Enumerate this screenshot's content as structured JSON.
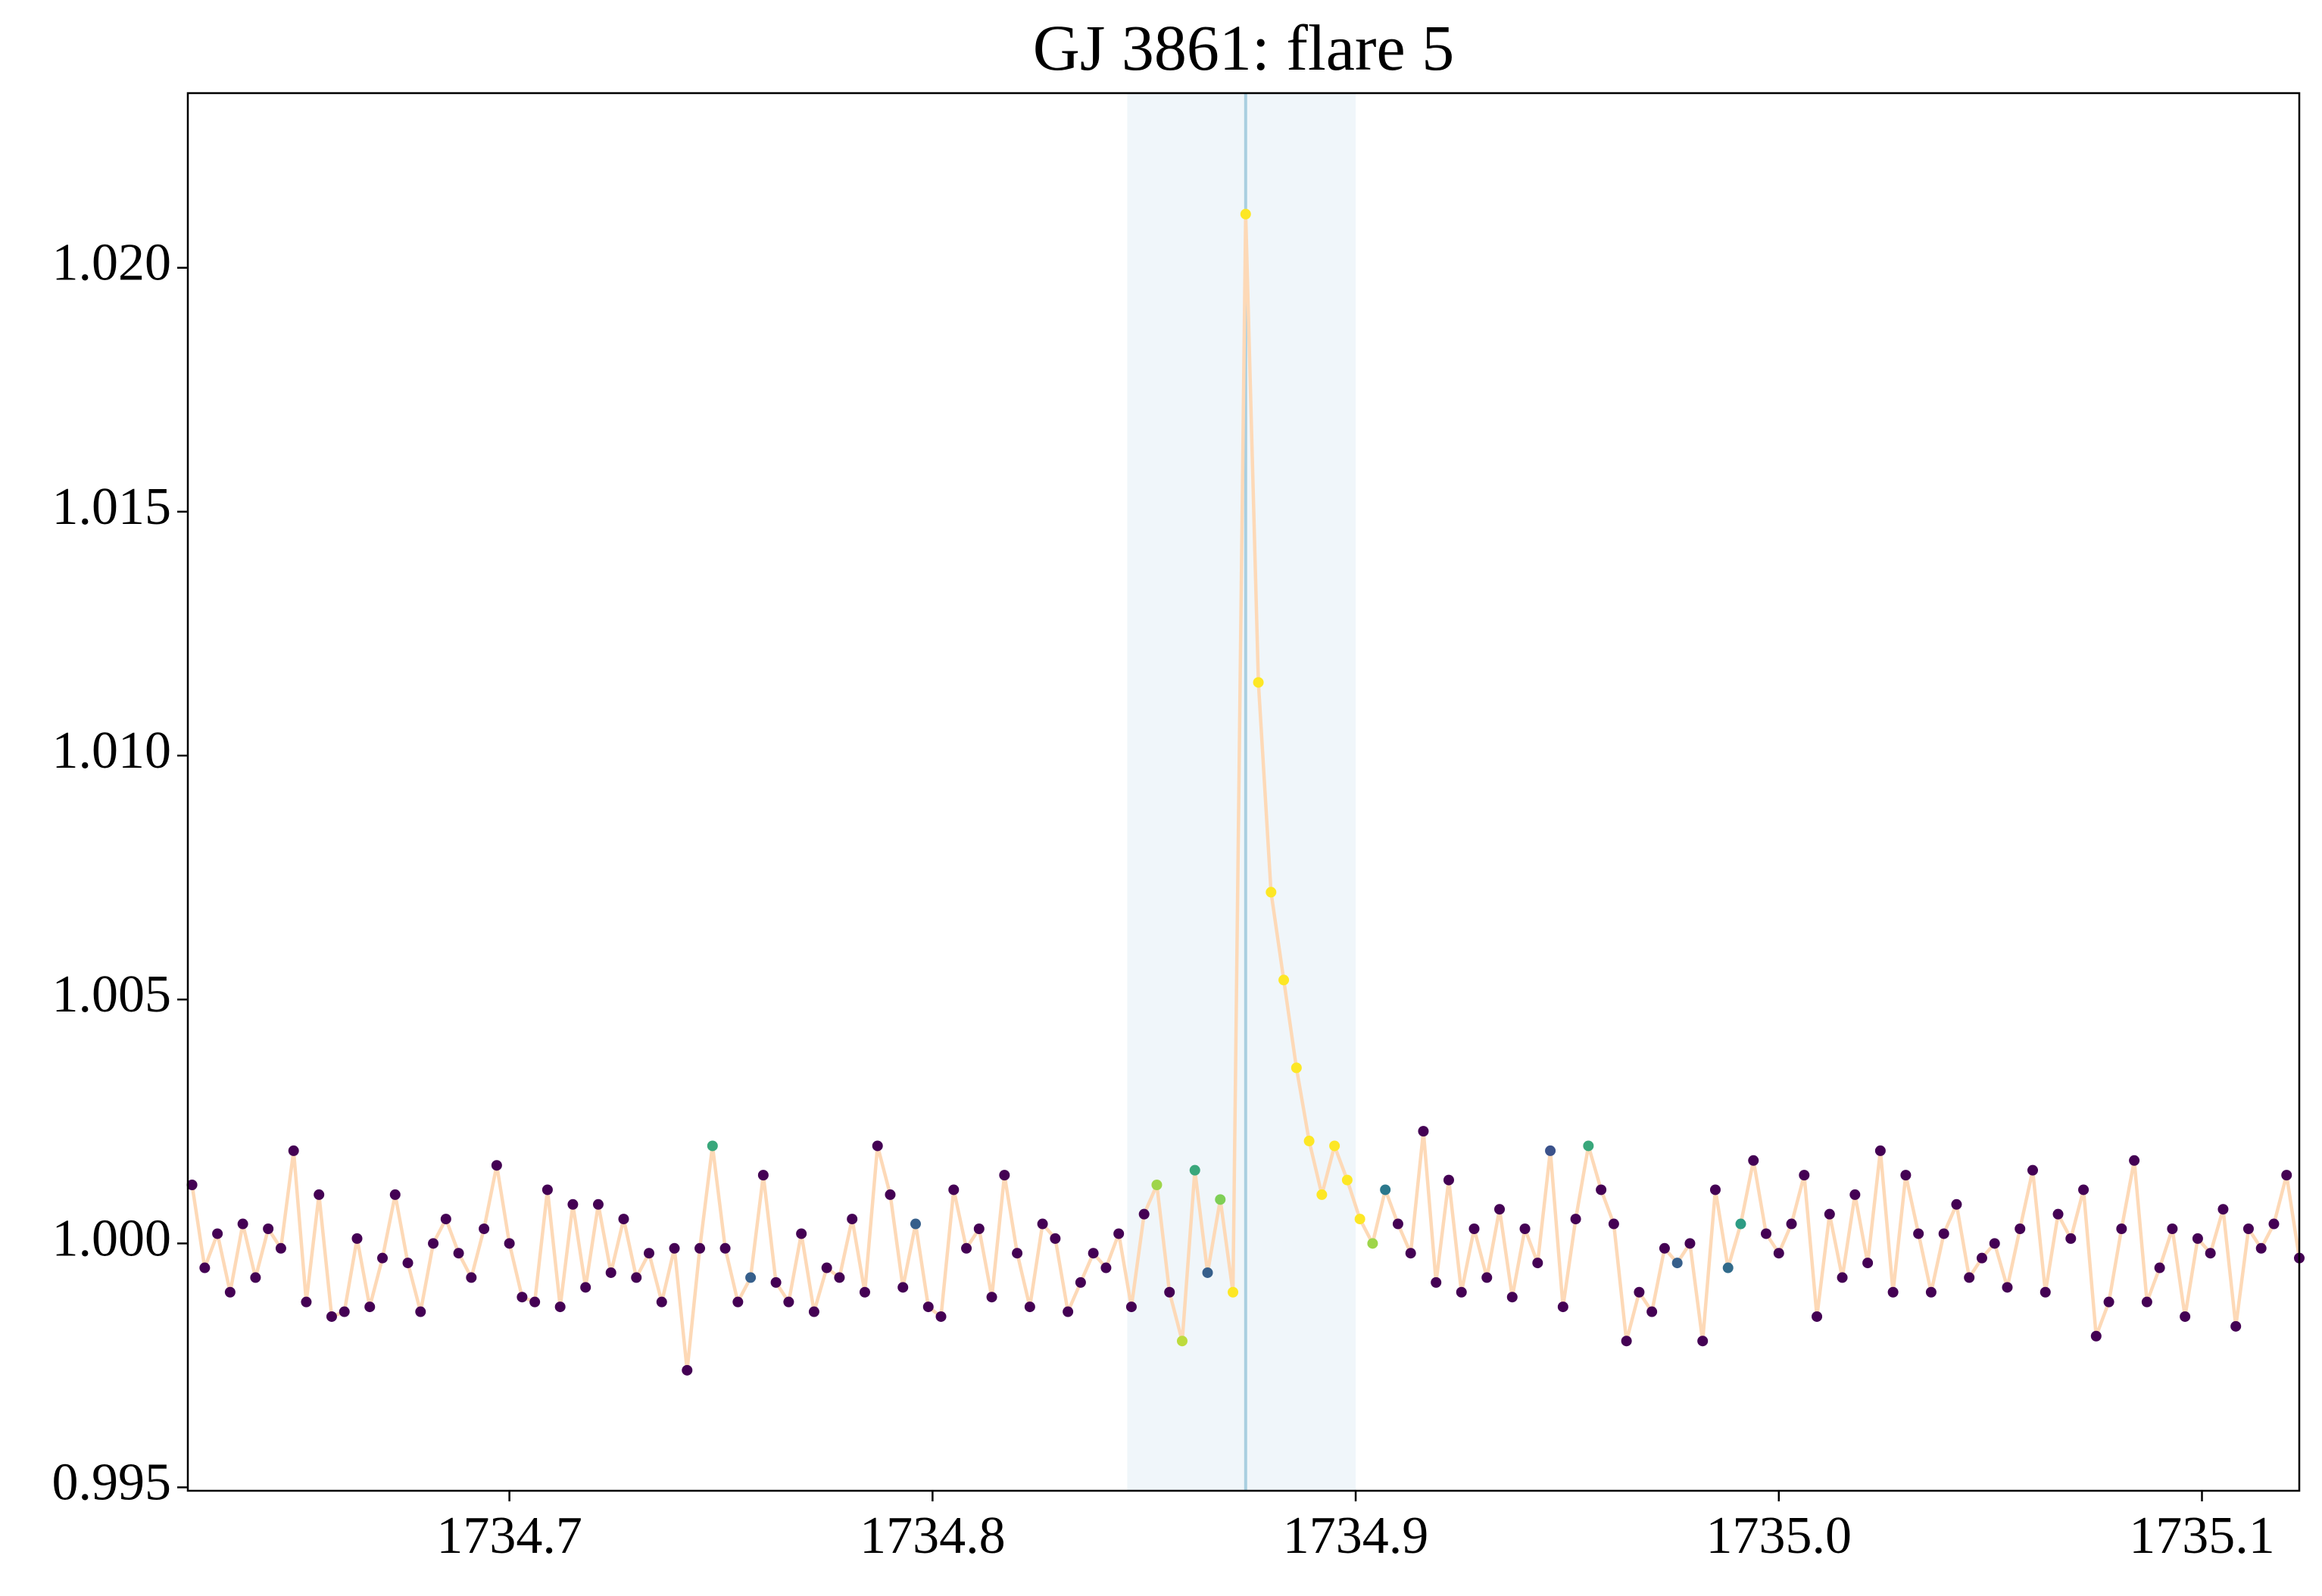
{
  "chart_data": {
    "type": "scatter",
    "title": "GJ 3861: flare 5",
    "x": [
      1734.625,
      1734.628,
      1734.631,
      1734.634,
      1734.637,
      1734.64,
      1734.643,
      1734.646,
      1734.649,
      1734.652,
      1734.655,
      1734.658,
      1734.661,
      1734.664,
      1734.667,
      1734.67,
      1734.673,
      1734.676,
      1734.679,
      1734.682,
      1734.685,
      1734.688,
      1734.691,
      1734.694,
      1734.697,
      1734.7,
      1734.703,
      1734.706,
      1734.709,
      1734.712,
      1734.715,
      1734.718,
      1734.721,
      1734.724,
      1734.727,
      1734.73,
      1734.733,
      1734.736,
      1734.739,
      1734.742,
      1734.745,
      1734.748,
      1734.751,
      1734.754,
      1734.757,
      1734.76,
      1734.763,
      1734.766,
      1734.769,
      1734.772,
      1734.775,
      1734.778,
      1734.781,
      1734.784,
      1734.787,
      1734.79,
      1734.793,
      1734.796,
      1734.799,
      1734.802,
      1734.805,
      1734.808,
      1734.811,
      1734.814,
      1734.817,
      1734.82,
      1734.823,
      1734.826,
      1734.829,
      1734.832,
      1734.835,
      1734.838,
      1734.841,
      1734.844,
      1734.847,
      1734.85,
      1734.853,
      1734.856,
      1734.859,
      1734.862,
      1734.865,
      1734.868,
      1734.871,
      1734.874,
      1734.877,
      1734.88,
      1734.883,
      1734.886,
      1734.889,
      1734.892,
      1734.895,
      1734.898,
      1734.901,
      1734.904,
      1734.907,
      1734.91,
      1734.913,
      1734.916,
      1734.919,
      1734.922,
      1734.925,
      1734.928,
      1734.931,
      1734.934,
      1734.937,
      1734.94,
      1734.943,
      1734.946,
      1734.949,
      1734.952,
      1734.955,
      1734.958,
      1734.961,
      1734.964,
      1734.967,
      1734.97,
      1734.973,
      1734.976,
      1734.979,
      1734.982,
      1734.985,
      1734.988,
      1734.991,
      1734.994,
      1734.997,
      1735.0,
      1735.003,
      1735.006,
      1735.009,
      1735.012,
      1735.015,
      1735.018,
      1735.021,
      1735.024,
      1735.027,
      1735.03,
      1735.033,
      1735.036,
      1735.039,
      1735.042,
      1735.045,
      1735.048,
      1735.051,
      1735.054,
      1735.057,
      1735.06,
      1735.063,
      1735.066,
      1735.069,
      1735.072,
      1735.075,
      1735.078,
      1735.081,
      1735.084,
      1735.087,
      1735.09,
      1735.093,
      1735.096,
      1735.099,
      1735.102,
      1735.105,
      1735.108,
      1735.111,
      1735.114,
      1735.117,
      1735.12,
      1735.123
    ],
    "series": [
      {
        "line_color": "#fdd9b7",
        "cmap": "viridis",
        "values": [
          1.0012,
          0.9995,
          1.0002,
          0.999,
          1.0004,
          0.9993,
          1.0003,
          0.9999,
          1.0019,
          0.9988,
          1.001,
          0.9985,
          0.9986,
          1.0001,
          0.9987,
          0.9997,
          1.001,
          0.9996,
          0.9986,
          1.0,
          1.0005,
          0.9998,
          0.9993,
          1.0003,
          1.0016,
          1.0,
          0.9989,
          0.9988,
          1.0011,
          0.9987,
          1.0008,
          0.9991,
          1.0008,
          0.9994,
          1.0005,
          0.9993,
          0.9998,
          0.9988,
          0.9999,
          0.9974,
          0.9999,
          1.002,
          0.9999,
          0.9988,
          0.9993,
          1.0014,
          0.9992,
          0.9988,
          1.0002,
          0.9986,
          0.9995,
          0.9993,
          1.0005,
          0.999,
          1.002,
          1.001,
          0.9991,
          1.0004,
          0.9987,
          0.9985,
          1.0011,
          0.9999,
          1.0003,
          0.9989,
          1.0014,
          0.9998,
          0.9987,
          1.0004,
          1.0001,
          0.9986,
          0.9992,
          0.9998,
          0.9995,
          1.0002,
          0.9987,
          1.0006,
          1.0012,
          0.999,
          0.998,
          1.0015,
          0.9994,
          1.0009,
          0.999,
          1.0211,
          1.0115,
          1.0072,
          1.0054,
          1.0036,
          1.0021,
          1.001,
          1.002,
          1.0013,
          1.0005,
          1.0,
          1.0011,
          1.0004,
          0.9998,
          1.0023,
          0.9992,
          1.0013,
          0.999,
          1.0003,
          0.9993,
          1.0007,
          0.9989,
          1.0003,
          0.9996,
          1.0019,
          0.9987,
          1.0005,
          1.002,
          1.0011,
          1.0004,
          0.998,
          0.999,
          0.9986,
          0.9999,
          0.9996,
          1.0,
          0.998,
          1.0011,
          0.9995,
          1.0004,
          1.0017,
          1.0002,
          0.9998,
          1.0004,
          1.0014,
          0.9985,
          1.0006,
          0.9993,
          1.001,
          0.9996,
          1.0019,
          0.999,
          1.0014,
          1.0002,
          0.999,
          1.0002,
          1.0008,
          0.9993,
          0.9997,
          1.0,
          0.9991,
          1.0003,
          1.0015,
          0.999,
          1.0006,
          1.0001,
          1.0011,
          0.9981,
          0.9988,
          1.0003,
          1.0017,
          0.9988,
          0.9995,
          1.0003,
          0.9985,
          1.0001,
          0.9998,
          1.0007,
          0.9983,
          1.0003,
          0.9999,
          1.0004,
          1.0014,
          0.9997
        ],
        "c": [
          0,
          0,
          0,
          0,
          0,
          0,
          0,
          0,
          0,
          0,
          0,
          0,
          0,
          0,
          0,
          0,
          0,
          0,
          0,
          0,
          0,
          0,
          0,
          0,
          0,
          0,
          0,
          0,
          0,
          0,
          0,
          0,
          0,
          0,
          0,
          0,
          0,
          0,
          0,
          0,
          0,
          0.6,
          0,
          0,
          0.3,
          0,
          0,
          0,
          0,
          0,
          0,
          0,
          0,
          0,
          0,
          0,
          0,
          0.3,
          0,
          0,
          0,
          0,
          0,
          0,
          0,
          0,
          0,
          0,
          0,
          0,
          0,
          0,
          0,
          0,
          0,
          0,
          0.85,
          0,
          0.9,
          0.6,
          0.3,
          0.8,
          1,
          1,
          1,
          1,
          1,
          1,
          1,
          1,
          1,
          1,
          1,
          0.85,
          0.4,
          0,
          0,
          0,
          0,
          0,
          0,
          0,
          0,
          0,
          0,
          0,
          0,
          0.25,
          0,
          0,
          0.6,
          0,
          0,
          0,
          0,
          0,
          0,
          0.3,
          0,
          0,
          0,
          0.35,
          0.55,
          0,
          0,
          0,
          0,
          0,
          0,
          0,
          0,
          0,
          0,
          0,
          0,
          0,
          0,
          0,
          0,
          0,
          0,
          0,
          0,
          0,
          0,
          0,
          0,
          0,
          0,
          0,
          0,
          0,
          0,
          0,
          0,
          0,
          0,
          0,
          0,
          0,
          0,
          0,
          0,
          0,
          0,
          0,
          0
        ]
      }
    ],
    "vline": 1734.874,
    "vline_color": "#a9cfe0",
    "span": [
      1734.846,
      1734.9
    ],
    "span_color": "#f0f6fa",
    "xlim": [
      1734.624,
      1735.123
    ],
    "ylim": [
      0.99493,
      1.02358
    ],
    "xticks": [
      1734.7,
      1734.8,
      1734.9,
      {
        "value": 1735.0,
        "label": "1735.0"
      },
      1735.1
    ],
    "yticks": [
      0.995,
      {
        "value": 1.0,
        "label": "1.000"
      },
      1.005,
      {
        "value": 1.01,
        "label": "1.010"
      },
      {
        "value": 1.015,
        "label": "1.015"
      },
      {
        "value": 1.02,
        "label": "1.020"
      }
    ],
    "grid": false
  }
}
